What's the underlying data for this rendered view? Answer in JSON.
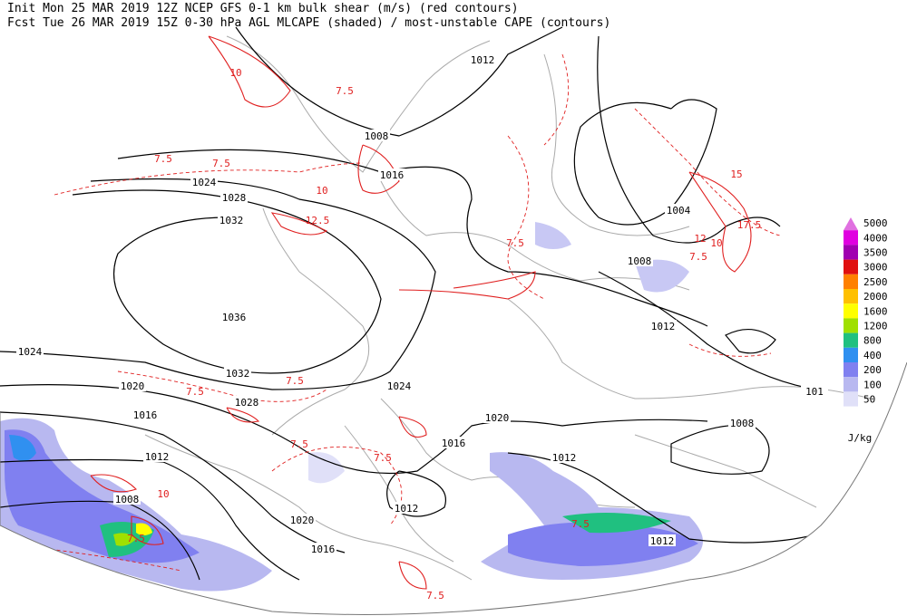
{
  "header": {
    "line1": "Init  Mon 25 MAR 2019 12Z  NCEP GFS 0-1 km bulk shear (m/s) (red contours)",
    "line2": "Fcst Tue 26 MAR 2019 15Z  0-30 hPa AGL MLCAPE (shaded) / most-unstable CAPE (contours)"
  },
  "colorbar": {
    "levels": [
      5000,
      4000,
      3500,
      3000,
      2500,
      2000,
      1600,
      1200,
      800,
      400,
      200,
      100,
      50
    ],
    "colors": [
      "#e070e0",
      "#e000e0",
      "#a000b0",
      "#e01010",
      "#ff8000",
      "#ffc000",
      "#ffff00",
      "#a0e000",
      "#20c080",
      "#3090f0",
      "#8080f0",
      "#b8b8f0",
      "#e0e0f8"
    ],
    "unit": "J/kg"
  },
  "isobar_labels": [
    "1012",
    "1008",
    "1016",
    "1024",
    "1028",
    "1032",
    "1036",
    "1032",
    "1028",
    "1024",
    "1024",
    "1020",
    "1016",
    "1012",
    "1008",
    "1020",
    "1016",
    "1012",
    "1016",
    "1020",
    "1012",
    "1012",
    "1008",
    "1004",
    "1008",
    "1012",
    "101"
  ],
  "shear_labels": [
    "7.5",
    "7.5",
    "10",
    "12.5",
    "7.5",
    "10",
    "7.5",
    "7.5",
    "7.5",
    "10",
    "7.5",
    "15",
    "17.5",
    "12",
    "10",
    "7.5",
    "7.5",
    "7.5",
    "7.5",
    "7.5"
  ]
}
